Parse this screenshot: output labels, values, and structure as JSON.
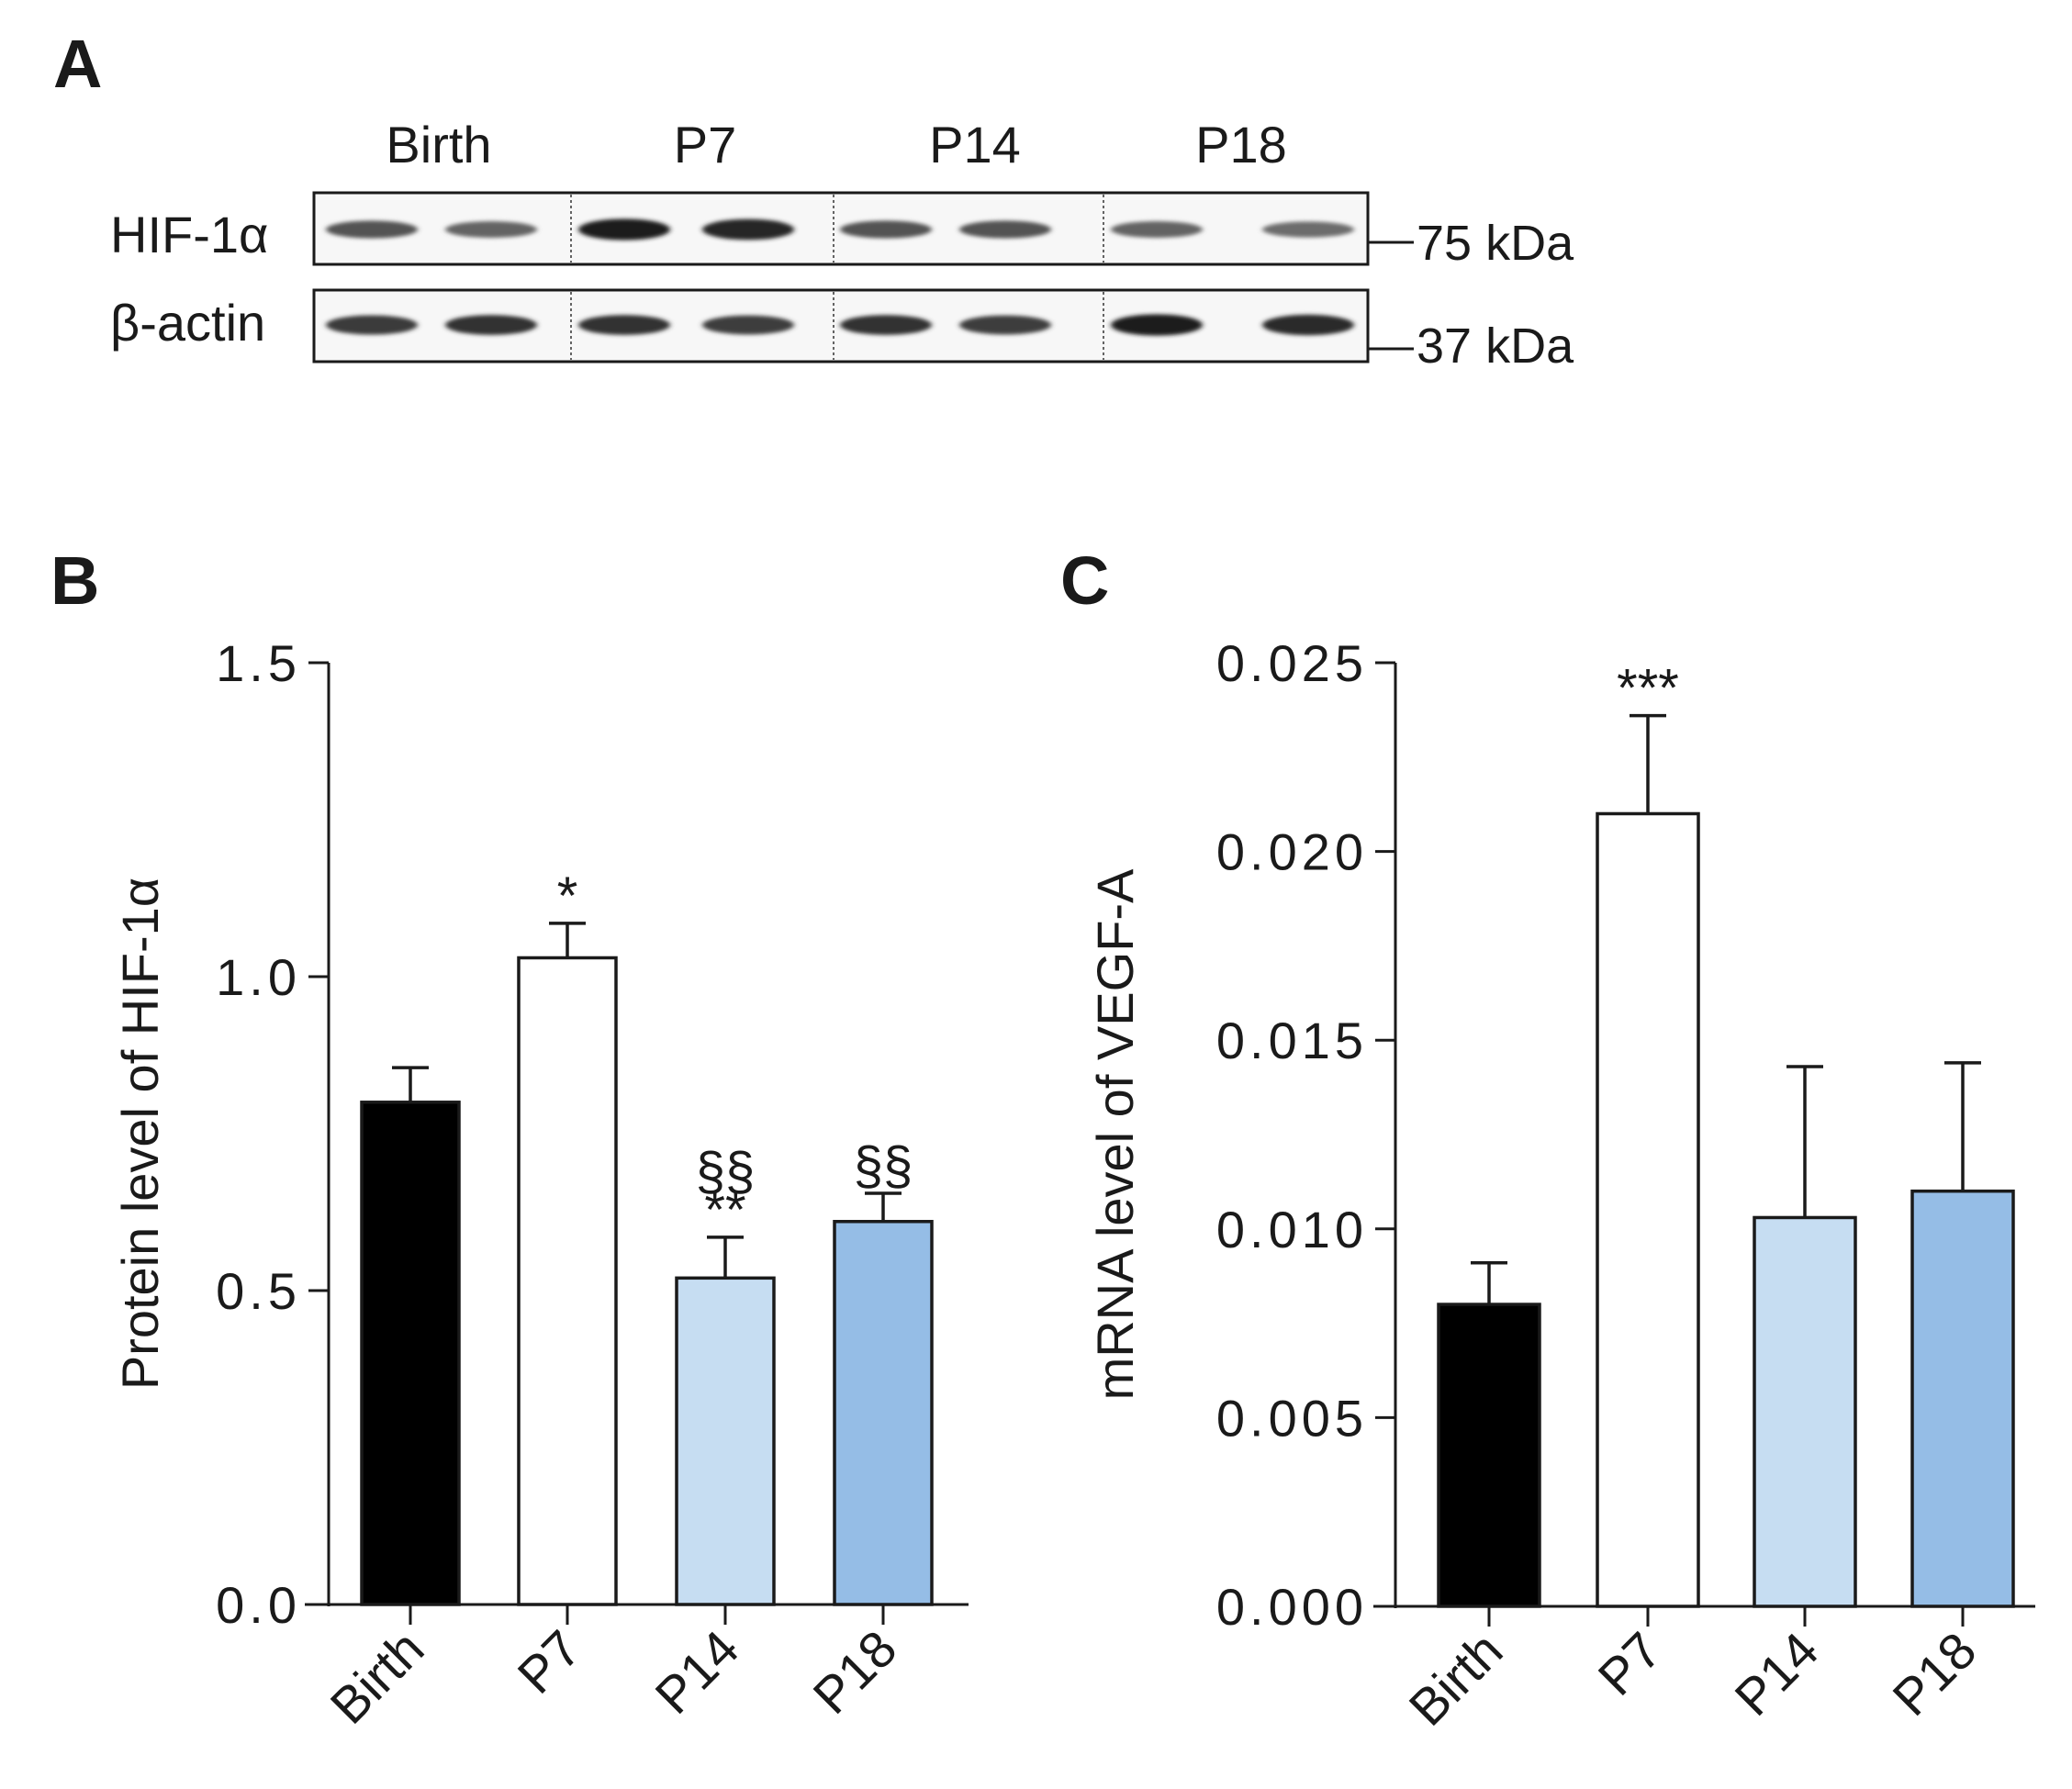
{
  "panels": {
    "a": "A",
    "b": "B",
    "c": "C"
  },
  "blot": {
    "lanes": [
      "Birth",
      "P7",
      "P14",
      "P18"
    ],
    "rows": [
      {
        "label": "HIF-1α",
        "marker": "75 kDa",
        "band_intensity": [
          0.7,
          0.62,
          0.95,
          0.92,
          0.7,
          0.7,
          0.62,
          0.58
        ]
      },
      {
        "label": "β-actin",
        "marker": "37 kDa",
        "band_intensity": [
          0.82,
          0.86,
          0.86,
          0.8,
          0.86,
          0.8,
          0.95,
          0.9
        ]
      }
    ]
  },
  "chart_data": [
    {
      "type": "bar",
      "id": "B",
      "categories": [
        "Birth",
        "P7",
        "P14",
        "P18"
      ],
      "values": [
        0.8,
        1.03,
        0.52,
        0.61
      ],
      "errors": [
        0.055,
        0.055,
        0.065,
        0.045
      ],
      "colors": [
        "#000000",
        "#ffffff",
        "#c6ddf2",
        "#95bde6"
      ],
      "annotations": [
        "",
        "*",
        "**",
        ""
      ],
      "annotations_top": [
        "",
        "",
        "§§",
        "§§"
      ],
      "ylabel": "Protein level of HIF-1α",
      "xlabel": "",
      "ylim": [
        0,
        1.5
      ],
      "yticks": [
        0.0,
        0.5,
        1.0,
        1.5
      ],
      "ytick_labels": [
        "0.0",
        "0.5",
        "1.0",
        "1.5"
      ]
    },
    {
      "type": "bar",
      "id": "C",
      "categories": [
        "Birth",
        "P7",
        "P14",
        "P18"
      ],
      "values": [
        0.008,
        0.021,
        0.0103,
        0.011
      ],
      "errors": [
        0.0011,
        0.0026,
        0.004,
        0.0034
      ],
      "colors": [
        "#000000",
        "#ffffff",
        "#c6ddf2",
        "#95bde6"
      ],
      "annotations": [
        "",
        "***",
        "",
        ""
      ],
      "annotations_top": [
        "",
        "",
        "",
        ""
      ],
      "ylabel": "mRNA level of VEGF-A",
      "xlabel": "",
      "ylim": [
        0,
        0.025
      ],
      "yticks": [
        0.0,
        0.005,
        0.01,
        0.015,
        0.02,
        0.025
      ],
      "ytick_labels": [
        "0.000",
        "0.005",
        "0.010",
        "0.015",
        "0.020",
        "0.025"
      ]
    }
  ]
}
